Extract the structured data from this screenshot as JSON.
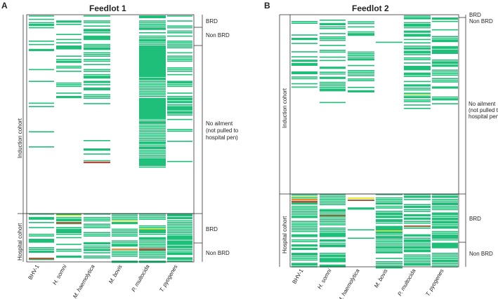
{
  "figure": {
    "panel_a": {
      "letter": "A",
      "title": "Feedlot 1",
      "cohorts": {
        "induction": "Induction cohort",
        "hospital": "Hospital cohort"
      },
      "right_labels": {
        "brd_top": "BRD",
        "non_brd_top": "Non BRD",
        "no_ailment": [
          "No ailment",
          "(not pulled to",
          "hospital pen)"
        ],
        "brd_bottom": "BRD",
        "non_brd_bottom": "Non BRD"
      },
      "pathogens": [
        "BHV-1",
        "H. somni",
        "M. haemolytica",
        "M. bovis",
        "P. multocida",
        "T. pyogenes"
      ]
    },
    "panel_b": {
      "letter": "B",
      "title": "Feedlot 2",
      "cohorts": {
        "induction": "Induction cohort",
        "hospital": "Hospital cohort"
      },
      "right_labels": {
        "brd_top": "BRD",
        "non_brd_top": "Non BRD",
        "no_ailment": [
          "No ailment",
          "(not pulled to",
          "hospital pen)"
        ],
        "brd_bottom": "BRD",
        "non_brd_bottom": "Non BRD"
      },
      "pathogens": [
        "BHV-1",
        "H. somni",
        "M. haemolytica",
        "M. bovis",
        "P. multocida",
        "T. pyogenes"
      ]
    },
    "colors": {
      "positive": "#1fbf7a",
      "light": "#b8e986",
      "yellow": "#e8e83a",
      "orange": "#f08a24",
      "red": "#e8322a",
      "brown": "#a0603a",
      "frame": "#333333"
    }
  }
}
